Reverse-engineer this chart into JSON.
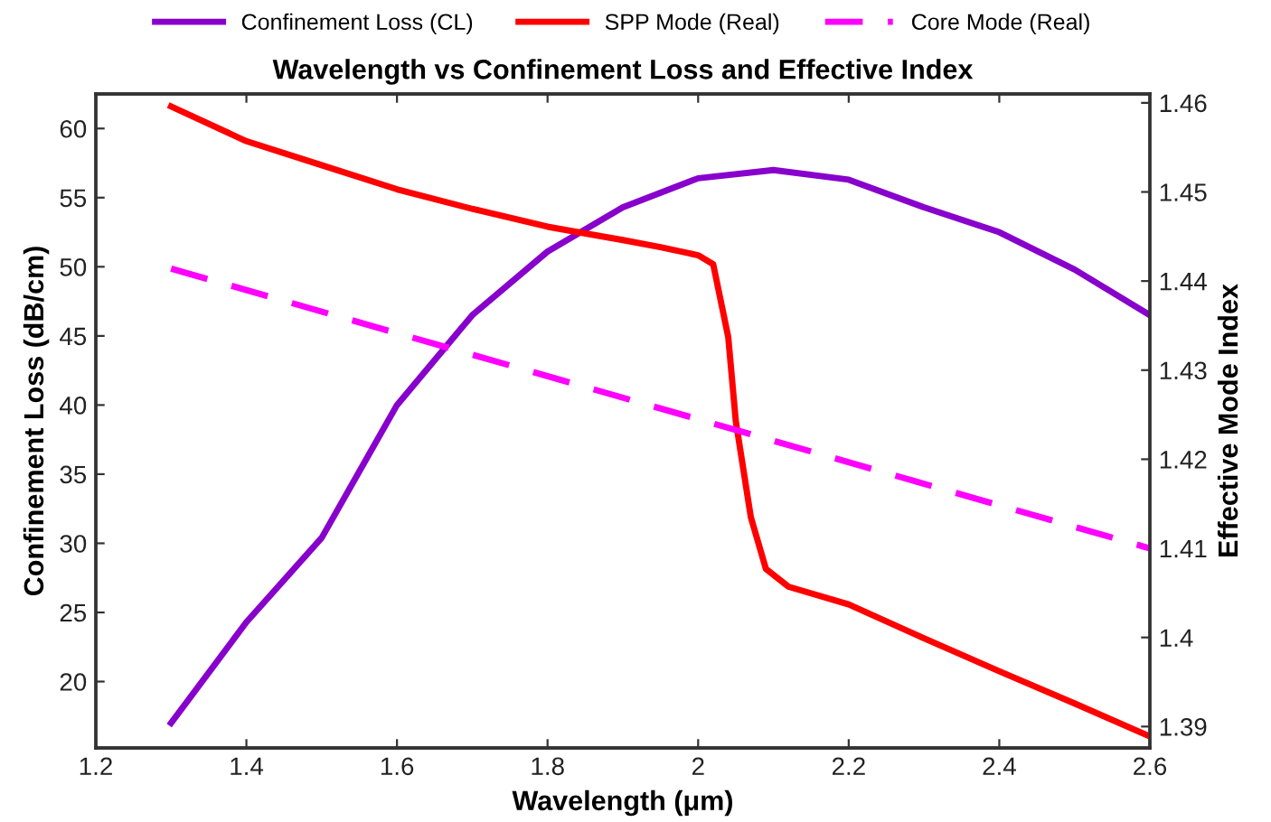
{
  "chart_data": {
    "type": "line",
    "title": "Wavelength vs Confinement Loss and Effective Index",
    "xlabel": "Wavelength (μm)",
    "ylabel": "Confinement Loss (dB/cm)",
    "y2label": "Effective Mode Index",
    "xlim": [
      1.2,
      2.6
    ],
    "xticks": [
      1.2,
      1.4,
      1.6,
      1.8,
      {
        "value": 2,
        "label": "2"
      },
      2.2,
      2.4,
      2.6
    ],
    "ylim": [
      15.2,
      62.5
    ],
    "yticks": [
      20,
      25,
      30,
      35,
      40,
      45,
      50,
      55,
      60
    ],
    "y2lim": [
      1.3876,
      1.461
    ],
    "y2ticks": [
      1.39,
      {
        "value": 1.4,
        "label": "1.4"
      },
      1.41,
      1.42,
      1.43,
      1.44,
      1.45,
      1.46
    ],
    "grid": false,
    "legend": "top",
    "marker": "none",
    "series": [
      {
        "name": "Confinement Loss (CL)",
        "color": "#8800cc",
        "line_style": "solid",
        "x": [
          1.3,
          1.4,
          1.5,
          1.6,
          1.7,
          1.8,
          1.9,
          2.0,
          2.1,
          2.2,
          2.3,
          2.4,
          2.5,
          2.6
        ],
        "values": [
          17.0,
          24.3,
          30.4,
          40.0,
          46.5,
          51.1,
          54.3,
          56.4,
          57.0,
          56.3,
          54.3,
          52.5,
          49.8,
          46.5
        ]
      },
      {
        "name": "SPP Mode (Real)",
        "color": "#ff0000",
        "axis": "y2",
        "line_style": "solid",
        "x": [
          1.3,
          1.4,
          1.5,
          1.6,
          1.7,
          1.8,
          1.9,
          1.95,
          2.0,
          2.02,
          2.04,
          2.05,
          2.07,
          2.09,
          2.12,
          2.2,
          2.3,
          2.4,
          2.5,
          2.6
        ],
        "values": [
          1.4596,
          1.4557,
          1.453,
          1.4503,
          1.4481,
          1.4461,
          1.4446,
          1.4438,
          1.4429,
          1.4419,
          1.4337,
          1.4243,
          1.4135,
          1.4077,
          1.4057,
          1.4037,
          1.3999,
          1.3962,
          1.3926,
          1.3889
        ]
      },
      {
        "name": "Core Mode (Real)",
        "color": "#ff00ff",
        "axis": "y2",
        "line_style": "dashed",
        "x": [
          1.3,
          2.6
        ],
        "values": [
          1.4414,
          1.41
        ]
      }
    ]
  }
}
